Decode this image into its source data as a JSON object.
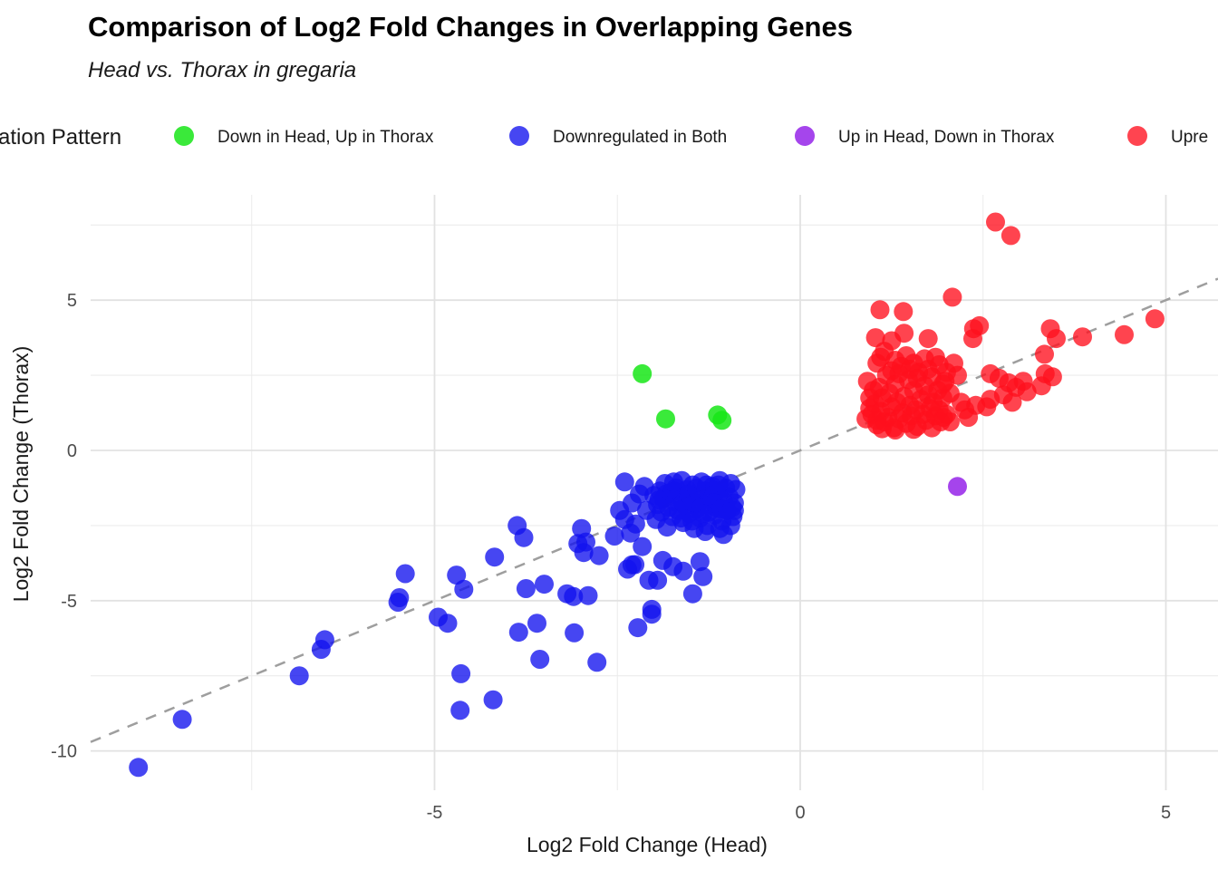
{
  "page": {
    "title": "Comparison of Log2 Fold Changes in Overlapping Genes",
    "subtitle": "Head vs. Thorax in gregaria"
  },
  "legend": {
    "title": "ation Pattern",
    "items": [
      {
        "label": "Down in Head, Up in Thorax",
        "color": "#3ae93a"
      },
      {
        "label": "Downregulated in Both",
        "color": "#4646f2"
      },
      {
        "label": "Up in Head, Down in Thorax",
        "color": "#a545ec"
      },
      {
        "label": "Upre",
        "color": "#ff4450"
      }
    ]
  },
  "chart_data": {
    "type": "scatter",
    "title": "Comparison of Log2 Fold Changes in Overlapping Genes",
    "subtitle": "Head vs. Thorax in gregaria",
    "xlabel": "Log2 Fold Change (Head)",
    "ylabel": "Log2 Fold Change (Thorax)",
    "x_ticks": [
      -5,
      0,
      5
    ],
    "y_ticks": [
      5,
      0,
      -5,
      -10
    ],
    "x_minor": [
      -7.5,
      -2.5,
      2.5
    ],
    "y_minor": [
      7.5,
      2.5,
      -2.5,
      -7.5
    ],
    "xlim": [
      -9.7,
      5.72
    ],
    "ylim": [
      -11.4,
      8.5
    ],
    "grid": true,
    "legend_position": "top",
    "identity_line": {
      "style": "dashed",
      "color": "#9e9e9e",
      "slope": 1,
      "intercept": 0
    },
    "series": [
      {
        "name": "Down in Head, Up in Thorax",
        "color": "#17e617",
        "opacity": 0.85,
        "points": [
          [
            -2.16,
            2.55
          ],
          [
            -1.84,
            1.05
          ],
          [
            -1.13,
            1.18
          ],
          [
            -1.07,
            1.0
          ]
        ]
      },
      {
        "name": "Downregulated in Both",
        "color": "#1212ee",
        "opacity": 0.78,
        "points": [
          [
            -9.05,
            -10.55
          ],
          [
            -8.45,
            -8.95
          ],
          [
            -6.85,
            -7.5
          ],
          [
            -6.5,
            -6.3
          ],
          [
            -6.55,
            -6.62
          ],
          [
            -5.4,
            -4.1
          ],
          [
            -5.48,
            -4.9
          ],
          [
            -5.5,
            -5.05
          ],
          [
            -4.95,
            -5.55
          ],
          [
            -4.82,
            -5.75
          ],
          [
            -4.7,
            -4.15
          ],
          [
            -4.6,
            -4.62
          ],
          [
            -4.64,
            -7.43
          ],
          [
            -4.65,
            -8.65
          ],
          [
            -4.2,
            -8.3
          ],
          [
            -4.18,
            -3.55
          ],
          [
            -3.87,
            -2.5
          ],
          [
            -3.78,
            -2.9
          ],
          [
            -3.75,
            -4.6
          ],
          [
            -3.5,
            -4.45
          ],
          [
            -3.19,
            -4.77
          ],
          [
            -3.1,
            -4.86
          ],
          [
            -2.9,
            -4.83
          ],
          [
            -3.85,
            -6.05
          ],
          [
            -3.6,
            -5.75
          ],
          [
            -3.09,
            -6.07
          ],
          [
            -3.56,
            -6.95
          ],
          [
            -2.78,
            -7.05
          ],
          [
            -2.22,
            -5.9
          ],
          [
            -2.03,
            -5.45
          ],
          [
            -1.37,
            -3.7
          ],
          [
            -1.33,
            -4.2
          ],
          [
            -2.99,
            -2.6
          ],
          [
            -2.93,
            -3.05
          ],
          [
            -3.04,
            -3.1
          ],
          [
            -2.96,
            -3.4
          ],
          [
            -2.75,
            -3.5
          ],
          [
            -2.54,
            -2.85
          ],
          [
            -2.47,
            -2.0
          ],
          [
            -2.32,
            -2.75
          ],
          [
            -2.16,
            -3.2
          ],
          [
            -2.26,
            -3.8
          ],
          [
            -2.36,
            -3.95
          ],
          [
            -2.3,
            -3.81
          ],
          [
            -2.07,
            -4.32
          ],
          [
            -1.88,
            -3.66
          ],
          [
            -1.95,
            -4.32
          ],
          [
            -1.74,
            -3.87
          ],
          [
            -1.6,
            -4.02
          ],
          [
            -2.03,
            -5.29
          ],
          [
            -1.47,
            -4.77
          ],
          [
            -2.4,
            -1.05
          ],
          [
            -2.13,
            -1.2
          ],
          [
            -1.72,
            -1.35
          ],
          [
            -2.2,
            -1.45
          ],
          [
            -2.3,
            -1.75
          ],
          [
            -2.1,
            -2.0
          ],
          [
            -2.4,
            -2.3
          ],
          [
            -2.25,
            -2.45
          ],
          [
            -0.88,
            -1.3
          ],
          [
            -0.9,
            -1.75
          ],
          [
            -0.92,
            -2.2
          ],
          [
            -0.95,
            -1.1
          ],
          [
            -0.97,
            -1.55
          ],
          [
            -1.0,
            -2.0
          ],
          [
            -1.02,
            -1.25
          ],
          [
            -1.05,
            -1.7
          ],
          [
            -1.07,
            -2.35
          ],
          [
            -1.1,
            -1.0
          ],
          [
            -1.12,
            -1.45
          ],
          [
            -1.15,
            -1.9
          ],
          [
            -1.17,
            -2.15
          ],
          [
            -1.2,
            -1.2
          ],
          [
            -1.22,
            -1.65
          ],
          [
            -1.25,
            -2.05
          ],
          [
            -1.27,
            -2.5
          ],
          [
            -1.3,
            -1.35
          ],
          [
            -1.32,
            -1.8
          ],
          [
            -1.35,
            -1.05
          ],
          [
            -1.37,
            -2.25
          ],
          [
            -1.4,
            -1.5
          ],
          [
            -1.42,
            -1.95
          ],
          [
            -1.45,
            -2.6
          ],
          [
            -1.47,
            -1.15
          ],
          [
            -1.5,
            -1.6
          ],
          [
            -1.52,
            -2.1
          ],
          [
            -1.55,
            -1.3
          ],
          [
            -1.57,
            -1.85
          ],
          [
            -1.6,
            -2.4
          ],
          [
            -1.62,
            -1.0
          ],
          [
            -1.65,
            -1.55
          ],
          [
            -1.67,
            -2.0
          ],
          [
            -1.7,
            -1.25
          ],
          [
            -1.72,
            -1.7
          ],
          [
            -1.75,
            -2.2
          ],
          [
            -1.77,
            -1.4
          ],
          [
            -1.8,
            -1.9
          ],
          [
            -1.82,
            -2.55
          ],
          [
            -1.85,
            -1.1
          ],
          [
            -1.87,
            -1.6
          ],
          [
            -1.9,
            -2.05
          ],
          [
            -1.92,
            -1.35
          ],
          [
            -1.95,
            -1.8
          ],
          [
            -1.97,
            -2.3
          ],
          [
            -2.0,
            -1.5
          ],
          [
            -1.15,
            -1.35
          ],
          [
            -1.3,
            -2.7
          ],
          [
            -1.05,
            -2.8
          ],
          [
            -0.95,
            -2.5
          ],
          [
            -1.45,
            -1.75
          ],
          [
            -1.25,
            -1.5
          ],
          [
            -1.1,
            -2.6
          ],
          [
            -0.9,
            -2.0
          ],
          [
            -1.6,
            -1.75
          ],
          [
            -1.28,
            -1.15
          ],
          [
            -1.48,
            -2.35
          ],
          [
            -1.08,
            -1.95
          ],
          [
            -0.93,
            -1.9
          ],
          [
            -1.33,
            -2.1
          ],
          [
            -1.18,
            -1.75
          ],
          [
            -1.53,
            -1.45
          ],
          [
            -1.63,
            -2.25
          ],
          [
            -1.73,
            -1.05
          ],
          [
            -1.83,
            -1.45
          ],
          [
            -1.93,
            -1.65
          ],
          [
            -1.42,
            -1.25
          ],
          [
            -1.12,
            -1.15
          ]
        ]
      },
      {
        "name": "Up in Head, Down in Thorax",
        "color": "#9b30ea",
        "opacity": 0.9,
        "points": [
          [
            2.15,
            -1.2
          ]
        ]
      },
      {
        "name": "Upre",
        "color": "#ff0f1e",
        "opacity": 0.78,
        "points": [
          [
            2.67,
            7.6
          ],
          [
            2.88,
            7.15
          ],
          [
            2.08,
            5.1
          ],
          [
            1.09,
            4.68
          ],
          [
            1.41,
            4.62
          ],
          [
            2.45,
            4.15
          ],
          [
            2.37,
            4.05
          ],
          [
            4.85,
            4.38
          ],
          [
            4.43,
            3.85
          ],
          [
            3.86,
            3.78
          ],
          [
            3.42,
            4.05
          ],
          [
            3.5,
            3.72
          ],
          [
            3.34,
            3.2
          ],
          [
            1.03,
            3.75
          ],
          [
            1.25,
            3.65
          ],
          [
            1.42,
            3.9
          ],
          [
            1.75,
            3.72
          ],
          [
            2.36,
            3.72
          ],
          [
            2.6,
            2.55
          ],
          [
            3.35,
            2.55
          ],
          [
            3.45,
            2.45
          ],
          [
            3.3,
            2.15
          ],
          [
            3.05,
            2.3
          ],
          [
            2.72,
            2.4
          ],
          [
            2.85,
            2.25
          ],
          [
            2.95,
            2.1
          ],
          [
            3.1,
            1.95
          ],
          [
            2.78,
            1.85
          ],
          [
            2.6,
            1.7
          ],
          [
            2.9,
            1.6
          ],
          [
            1.96,
            1.1
          ],
          [
            2.25,
            1.35
          ],
          [
            2.4,
            1.5
          ],
          [
            2.55,
            1.45
          ],
          [
            2.05,
            0.95
          ],
          [
            2.2,
            1.6
          ],
          [
            2.3,
            1.1
          ],
          [
            0.98,
            1.2
          ],
          [
            1.02,
            1.55
          ],
          [
            1.05,
            0.85
          ],
          [
            1.08,
            2.1
          ],
          [
            1.1,
            1.3
          ],
          [
            1.12,
            1.75
          ],
          [
            1.15,
            0.95
          ],
          [
            1.18,
            2.5
          ],
          [
            1.2,
            1.1
          ],
          [
            1.22,
            1.9
          ],
          [
            1.25,
            1.45
          ],
          [
            1.28,
            0.75
          ],
          [
            1.3,
            2.2
          ],
          [
            1.32,
            1.6
          ],
          [
            1.35,
            1.05
          ],
          [
            1.38,
            2.8
          ],
          [
            1.4,
            1.25
          ],
          [
            1.42,
            1.8
          ],
          [
            1.45,
            0.9
          ],
          [
            1.48,
            2.35
          ],
          [
            1.5,
            1.5
          ],
          [
            1.52,
            1.15
          ],
          [
            1.55,
            2.0
          ],
          [
            1.58,
            1.35
          ],
          [
            1.6,
            0.8
          ],
          [
            1.62,
            2.6
          ],
          [
            1.65,
            1.7
          ],
          [
            1.68,
            1.2
          ],
          [
            1.7,
            2.15
          ],
          [
            1.72,
            1.0
          ],
          [
            1.75,
            1.85
          ],
          [
            1.78,
            1.4
          ],
          [
            1.8,
            2.45
          ],
          [
            1.82,
            1.6
          ],
          [
            1.85,
            1.15
          ],
          [
            1.88,
            2.0
          ],
          [
            1.9,
            1.35
          ],
          [
            1.92,
            0.95
          ],
          [
            1.95,
            1.75
          ],
          [
            1.98,
            2.3
          ],
          [
            2.0,
            1.2
          ],
          [
            1.0,
            2.0
          ],
          [
            1.05,
            2.9
          ],
          [
            1.1,
            3.1
          ],
          [
            1.15,
            3.3
          ],
          [
            1.3,
            3.0
          ],
          [
            1.45,
            3.15
          ],
          [
            0.95,
            1.75
          ],
          [
            0.92,
            2.3
          ],
          [
            1.55,
            2.9
          ],
          [
            1.7,
            3.05
          ],
          [
            1.35,
            2.55
          ],
          [
            1.5,
            2.7
          ],
          [
            1.25,
            2.65
          ],
          [
            1.6,
            2.4
          ],
          [
            1.75,
            2.7
          ],
          [
            1.9,
            2.85
          ],
          [
            2.0,
            2.6
          ],
          [
            1.85,
            3.1
          ],
          [
            2.1,
            2.9
          ],
          [
            1.95,
            2.2
          ],
          [
            2.05,
            1.9
          ],
          [
            2.15,
            2.5
          ],
          [
            1.12,
            0.72
          ],
          [
            1.3,
            0.68
          ],
          [
            1.55,
            0.7
          ],
          [
            1.8,
            0.75
          ],
          [
            1.05,
            1.0
          ],
          [
            0.95,
            1.4
          ],
          [
            0.9,
            1.05
          ]
        ]
      }
    ]
  }
}
